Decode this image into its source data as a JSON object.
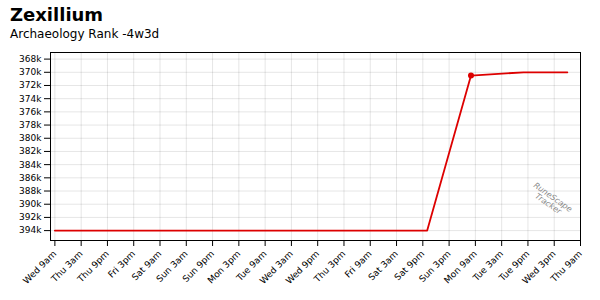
{
  "chart_data": {
    "type": "line",
    "title": "Zexillium",
    "subtitle": "Archaeology Rank -4w3d",
    "annotation": "RuneScape\nTracker",
    "x": [
      0,
      85,
      95,
      107,
      117
    ],
    "values": [
      394000,
      394000,
      370500,
      370000,
      370000
    ],
    "color": "#dd0000",
    "dot": {
      "x": 95,
      "y": 370500
    },
    "xlim": [
      -1,
      120
    ],
    "xticks": [
      {
        "value": 0,
        "label": "Wed 9am"
      },
      {
        "value": 6,
        "label": "Thu 3am"
      },
      {
        "value": 12,
        "label": "Thu 9pm"
      },
      {
        "value": 18,
        "label": "Fri 3pm"
      },
      {
        "value": 24,
        "label": "Sat 9am"
      },
      {
        "value": 30,
        "label": "Sun 3am"
      },
      {
        "value": 36,
        "label": "Sun 9pm"
      },
      {
        "value": 42,
        "label": "Mon 3pm"
      },
      {
        "value": 48,
        "label": "Tue 9am"
      },
      {
        "value": 54,
        "label": "Wed 3am"
      },
      {
        "value": 60,
        "label": "Wed 9pm"
      },
      {
        "value": 66,
        "label": "Thu 3pm"
      },
      {
        "value": 72,
        "label": "Fri 9am"
      },
      {
        "value": 78,
        "label": "Sat 3am"
      },
      {
        "value": 84,
        "label": "Sat 9pm"
      },
      {
        "value": 90,
        "label": "Sun 3pm"
      },
      {
        "value": 96,
        "label": "Mon 9am"
      },
      {
        "value": 102,
        "label": "Tue 3am"
      },
      {
        "value": 108,
        "label": "Tue 9pm"
      },
      {
        "value": 114,
        "label": "Wed 3pm"
      },
      {
        "value": 120,
        "label": "Thu 9am"
      }
    ],
    "ylim": [
      395500,
      367000
    ],
    "yticks": [
      {
        "value": 368000,
        "label": "368k"
      },
      {
        "value": 370000,
        "label": "370k"
      },
      {
        "value": 372000,
        "label": "372k"
      },
      {
        "value": 374000,
        "label": "374k"
      },
      {
        "value": 376000,
        "label": "376k"
      },
      {
        "value": 378000,
        "label": "378k"
      },
      {
        "value": 380000,
        "label": "380k"
      },
      {
        "value": 382000,
        "label": "382k"
      },
      {
        "value": 384000,
        "label": "384k"
      },
      {
        "value": 386000,
        "label": "386k"
      },
      {
        "value": 388000,
        "label": "388k"
      },
      {
        "value": 390000,
        "label": "390k"
      },
      {
        "value": 392000,
        "label": "392k"
      },
      {
        "value": 394000,
        "label": "394k"
      }
    ],
    "grid": true
  }
}
